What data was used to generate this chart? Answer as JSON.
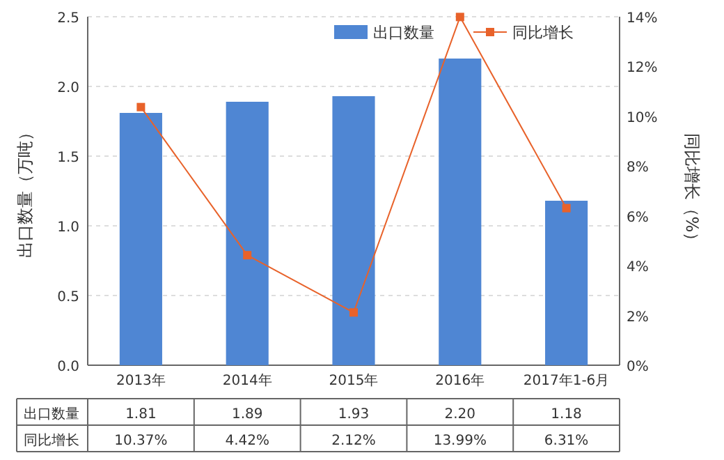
{
  "chart_data": {
    "type": "bar",
    "categories": [
      "2013年",
      "2014年",
      "2015年",
      "2016年",
      "2017年1-6月"
    ],
    "ylabel": "出口数量（万吨）",
    "y2label": "同比增长（%）",
    "ylim": [
      0,
      2.5
    ],
    "yticks": [
      {
        "value": 0,
        "label": "0.0"
      },
      {
        "value": 0.5,
        "label": "0.5"
      },
      {
        "value": 1,
        "label": "1.0"
      },
      {
        "value": 1.5,
        "label": "1.5"
      },
      {
        "value": 2,
        "label": "2.0"
      },
      {
        "value": 2.5,
        "label": "2.5"
      }
    ],
    "y2lim": [
      0,
      14
    ],
    "y2ticks": [
      {
        "value": 0,
        "label": "0%"
      },
      {
        "value": 2,
        "label": "2%"
      },
      {
        "value": 4,
        "label": "4%"
      },
      {
        "value": 6,
        "label": "6%"
      },
      {
        "value": 8,
        "label": "8%"
      },
      {
        "value": 10,
        "label": "10%"
      },
      {
        "value": 12,
        "label": "12%"
      },
      {
        "value": 14,
        "label": "14%"
      }
    ],
    "grid": "y",
    "legend": "top right",
    "series": [
      {
        "name": "出口数量",
        "color": "#4f86d3",
        "values": [
          1.81,
          1.89,
          1.93,
          2.2,
          1.18
        ],
        "value_labels": [
          "1.81",
          "1.89",
          "1.93",
          "2.20",
          "1.18"
        ]
      },
      {
        "name": "同比增长",
        "type": "line",
        "axis": "y2",
        "color": "#e8622a",
        "marker": "square",
        "values": [
          10.37,
          4.42,
          2.12,
          13.99,
          6.31
        ],
        "value_labels": [
          "10.37%",
          "4.42%",
          "2.12%",
          "13.99%",
          "6.31%"
        ]
      }
    ]
  }
}
